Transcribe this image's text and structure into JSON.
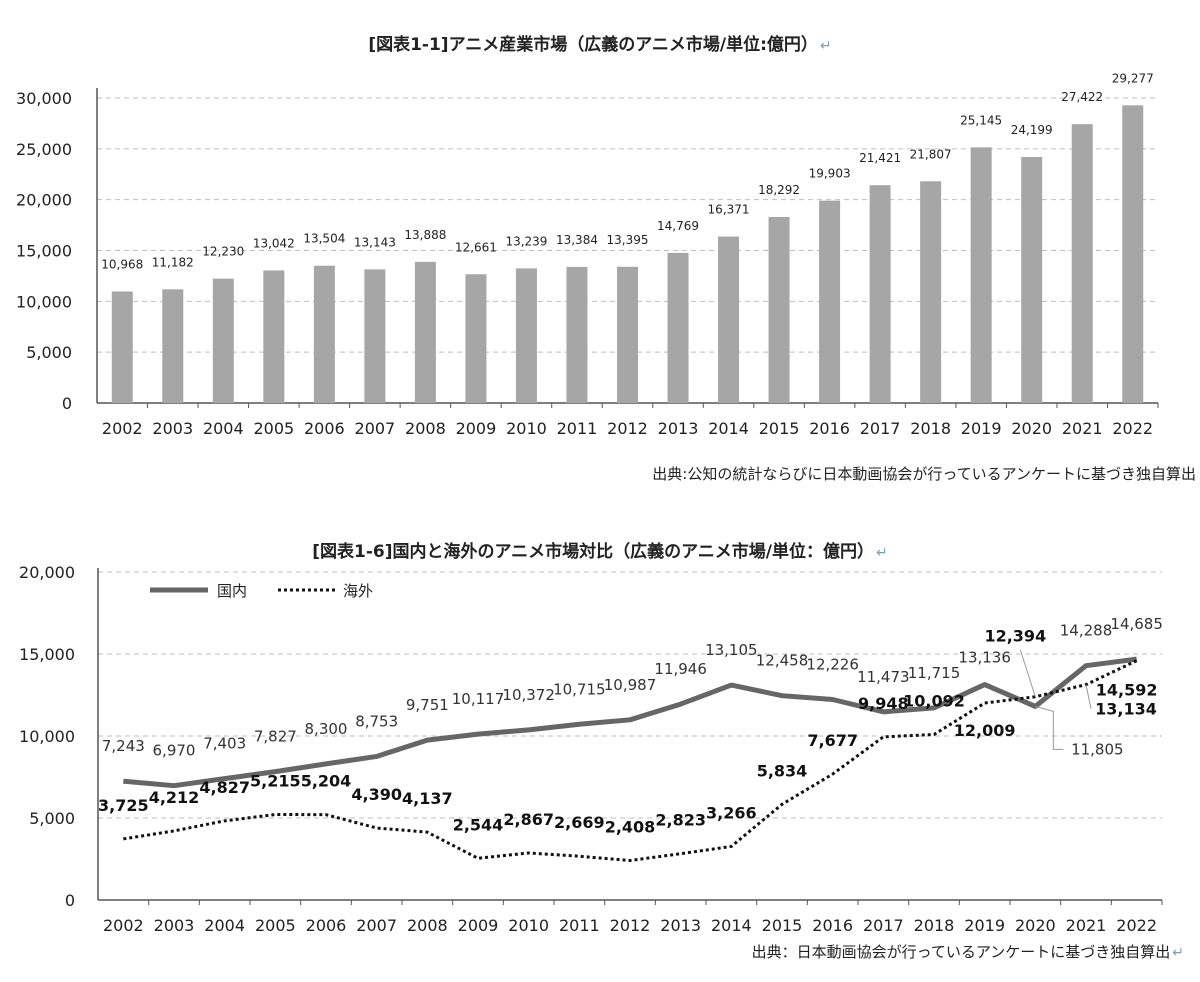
{
  "chart1": {
    "title": "[図表1-1]アニメ産業市場（広義のアニメ市場/単位:億円）",
    "source": "出典:公知の統計ならびに日本動画協会が行っているアンケートに基づき独自算出",
    "return_mark": "↵"
  },
  "chart2": {
    "title": "[図表1-6]国内と海外のアニメ市場対比（広義のアニメ市場/単位：億円）",
    "source": "出典：日本動画協会が行っているアンケートに基づき独自算出",
    "return_mark": "↵",
    "legend": {
      "domestic": "国内",
      "overseas": "海外"
    }
  },
  "chart_data": [
    {
      "type": "bar",
      "categories": [
        "2002",
        "2003",
        "2004",
        "2005",
        "2006",
        "2007",
        "2008",
        "2009",
        "2010",
        "2011",
        "2012",
        "2013",
        "2014",
        "2015",
        "2016",
        "2017",
        "2018",
        "2019",
        "2020",
        "2021",
        "2022"
      ],
      "values": [
        10968,
        11182,
        12230,
        13042,
        13504,
        13143,
        13888,
        12661,
        13239,
        13384,
        13395,
        14769,
        16371,
        18292,
        19903,
        21421,
        21807,
        25145,
        24199,
        27422,
        29277
      ],
      "value_labels": [
        "10,968",
        "11,182",
        "12,230",
        "13,042",
        "13,504",
        "13,143",
        "13,888",
        "12,661",
        "13,239",
        "13,384",
        "13,395",
        "14,769",
        "16,371",
        "18,292",
        "19,903",
        "21,421",
        "21,807",
        "25,145",
        "24,199",
        "27,422",
        "29,277"
      ],
      "y_ticks": [
        "0",
        "5,000",
        "10,000",
        "15,000",
        "20,000",
        "25,000",
        "30,000"
      ],
      "ylim": [
        0,
        30000
      ],
      "grid": true,
      "bar_color": "#a6a6a6"
    },
    {
      "type": "line",
      "categories": [
        "2002",
        "2003",
        "2004",
        "2005",
        "2006",
        "2007",
        "2008",
        "2009",
        "2010",
        "2011",
        "2012",
        "2013",
        "2014",
        "2015",
        "2016",
        "2017",
        "2018",
        "2019",
        "2020",
        "2021",
        "2022"
      ],
      "series": [
        {
          "name": "国内",
          "style": "solid",
          "color": "#666666",
          "values": [
            7243,
            6970,
            7403,
            7827,
            8300,
            8753,
            9751,
            10117,
            10372,
            10715,
            10987,
            11946,
            13105,
            12458,
            12226,
            11473,
            11715,
            13136,
            11805,
            14288,
            14685
          ],
          "labels": [
            "7,243",
            "6,970",
            "7,403",
            "7,827",
            "8,300",
            "8,753",
            "9,751",
            "10,117",
            "10,372",
            "10,715",
            "10,987",
            "11,946",
            "13,105",
            "12,458",
            "12,226",
            "11,473",
            "11,715",
            "13,136",
            "11,805",
            "14,288",
            "14,685"
          ]
        },
        {
          "name": "海外",
          "style": "dotted",
          "color": "#111111",
          "values": [
            3725,
            4212,
            4827,
            5215,
            5204,
            4390,
            4137,
            2544,
            2867,
            2669,
            2408,
            2823,
            3266,
            5834,
            7677,
            9948,
            10092,
            12009,
            12394,
            13134,
            14592
          ],
          "labels": [
            "3,725",
            "4,212",
            "4,827",
            "5,215",
            "5,204",
            "4,390",
            "4,137",
            "2,544",
            "2,867",
            "2,669",
            "2,408",
            "2,823",
            "3,266",
            "5,834",
            "7,677",
            "9,948",
            "10,092",
            "12,009",
            "12,394",
            "13,134",
            "14,592"
          ]
        }
      ],
      "y_ticks": [
        "0",
        "5,000",
        "10,000",
        "15,000",
        "20,000"
      ],
      "ylim": [
        0,
        20000
      ],
      "grid": true,
      "legend_position": "top-left"
    }
  ]
}
